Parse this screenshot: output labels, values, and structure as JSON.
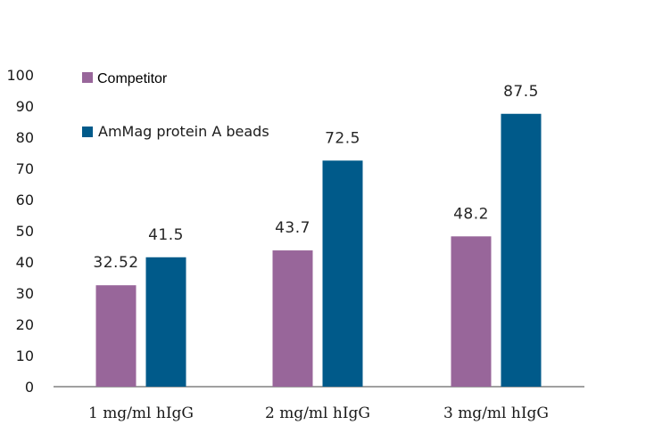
{
  "chart_data": {
    "type": "bar",
    "categories": [
      "1 mg/ml hIgG",
      "2 mg/ml hIgG",
      "3 mg/ml hIgG"
    ],
    "series": [
      {
        "name": "Competitor",
        "values": [
          32.52,
          43.7,
          48.2
        ],
        "labels": [
          "32.52",
          "43.7",
          "48.2"
        ],
        "color": "#98669a"
      },
      {
        "name": "AmMag protein A beads",
        "values": [
          41.5,
          72.5,
          87.5
        ],
        "labels": [
          "41.5",
          "72.5",
          "87.5"
        ],
        "color": "#005a8a"
      }
    ],
    "yticks": [
      "0",
      "10",
      "20",
      "30",
      "40",
      "50",
      "60",
      "70",
      "80",
      "90",
      "100"
    ],
    "ylim": [
      0,
      100
    ],
    "title": "",
    "xlabel": "",
    "ylabel": "",
    "grid": false,
    "legend_position": "top-left"
  }
}
